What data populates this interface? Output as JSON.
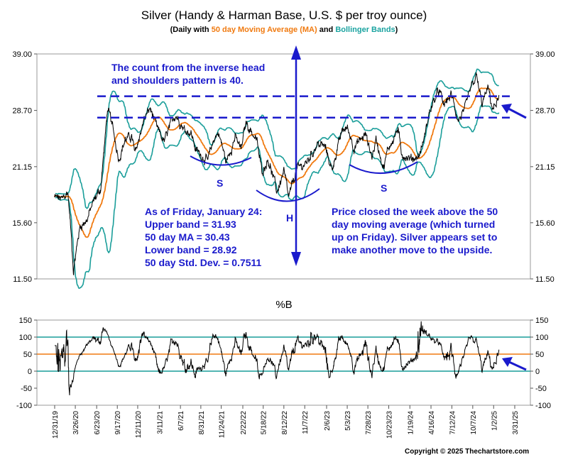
{
  "chart_data": [
    {
      "type": "line",
      "title": "Silver (Handy & Harman Base, U.S. $ per troy ounce)",
      "subtitle_parts": {
        "prefix": "(Daily with ",
        "ma_label": "50 day Moving Average (MA)",
        "and": " and ",
        "bb_label": "Bollinger Bands",
        "suffix": ")"
      },
      "log_scale": true,
      "ylim": [
        11.5,
        39.0
      ],
      "y_ticks": [
        "39.00",
        "28.70",
        "21.15",
        "15.60",
        "11.50"
      ],
      "y_tick_values": [
        39.0,
        28.7,
        21.15,
        15.6,
        11.5
      ],
      "grid": false,
      "series_colors": {
        "price": "#000000",
        "ma": "#f07a10",
        "bands": "#1a9e9a",
        "annotation": "#1a1acc"
      },
      "anchors": [
        [
          "2019-12-31",
          17.9
        ],
        [
          "2020-01-31",
          17.7
        ],
        [
          "2020-02-24",
          18.4
        ],
        [
          "2020-03-18",
          12.0
        ],
        [
          "2020-04-15",
          15.3
        ],
        [
          "2020-05-15",
          15.9
        ],
        [
          "2020-06-12",
          17.6
        ],
        [
          "2020-07-10",
          18.8
        ],
        [
          "2020-07-28",
          24.5
        ],
        [
          "2020-08-07",
          28.9
        ],
        [
          "2020-08-21",
          27.3
        ],
        [
          "2020-09-23",
          22.1
        ],
        [
          "2020-10-20",
          24.5
        ],
        [
          "2020-11-16",
          24.9
        ],
        [
          "2020-11-30",
          22.6
        ],
        [
          "2021-01-06",
          27.3
        ],
        [
          "2021-02-01",
          29.0
        ],
        [
          "2021-03-01",
          26.0
        ],
        [
          "2021-03-31",
          24.2
        ],
        [
          "2021-05-17",
          28.2
        ],
        [
          "2021-06-22",
          26.0
        ],
        [
          "2021-07-21",
          25.5
        ],
        [
          "2021-08-11",
          23.1
        ],
        [
          "2021-09-30",
          21.8
        ],
        [
          "2021-10-25",
          24.6
        ],
        [
          "2021-11-12",
          25.5
        ],
        [
          "2021-12-15",
          21.6
        ],
        [
          "2022-01-20",
          24.8
        ],
        [
          "2022-02-15",
          23.2
        ],
        [
          "2022-03-07",
          26.9
        ],
        [
          "2022-04-20",
          24.4
        ],
        [
          "2022-05-13",
          20.5
        ],
        [
          "2022-06-07",
          22.1
        ],
        [
          "2022-07-14",
          18.4
        ],
        [
          "2022-08-12",
          20.6
        ],
        [
          "2022-09-01",
          17.8
        ],
        [
          "2022-10-04",
          20.8
        ],
        [
          "2022-11-15",
          21.6
        ],
        [
          "2022-12-30",
          24.0
        ],
        [
          "2023-01-31",
          23.5
        ],
        [
          "2023-02-28",
          20.8
        ],
        [
          "2023-04-14",
          25.8
        ],
        [
          "2023-05-04",
          26.1
        ],
        [
          "2023-06-01",
          23.5
        ],
        [
          "2023-07-18",
          25.2
        ],
        [
          "2023-08-15",
          22.3
        ],
        [
          "2023-08-31",
          24.5
        ],
        [
          "2023-10-02",
          21.0
        ],
        [
          "2023-10-20",
          23.3
        ],
        [
          "2023-12-01",
          25.9
        ],
        [
          "2023-12-13",
          22.8
        ],
        [
          "2024-01-22",
          22.0
        ],
        [
          "2024-02-28",
          22.5
        ],
        [
          "2024-03-21",
          25.0
        ],
        [
          "2024-04-12",
          28.8
        ],
        [
          "2024-05-20",
          32.0
        ],
        [
          "2024-06-07",
          29.5
        ],
        [
          "2024-07-10",
          31.2
        ],
        [
          "2024-08-07",
          27.2
        ],
        [
          "2024-09-03",
          28.5
        ],
        [
          "2024-09-27",
          32.0
        ],
        [
          "2024-10-22",
          34.5
        ],
        [
          "2024-11-14",
          29.7
        ],
        [
          "2024-12-10",
          32.3
        ],
        [
          "2024-12-30",
          28.8
        ],
        [
          "2025-01-24",
          30.6
        ]
      ],
      "annotations": {
        "count_text": [
          "The count from the inverse head",
          "and shoulders pattern is 40."
        ],
        "stats_text": [
          "As of Friday, January 24:",
          "Upper band = 31.93",
          "50 day MA = 30.43",
          "Lower band = 28.92",
          "50 day Std. Dev. = 0.7511"
        ],
        "price_text": [
          "Price closed the week above the 50",
          "day moving average (which turned",
          "up  on Friday).  Silver appears set  to",
          "make another move to the upside."
        ],
        "pattern_labels": [
          "S",
          "H",
          "S"
        ],
        "dashed_levels": [
          31.0,
          27.6
        ]
      }
    },
    {
      "type": "line",
      "title": "%B",
      "ylim": [
        -100,
        150
      ],
      "y_ticks": [
        "150",
        "100",
        "50",
        "0",
        "-50",
        "-100"
      ],
      "y_tick_values": [
        150,
        100,
        50,
        0,
        -50,
        -100
      ],
      "reference_lines": [
        100,
        50,
        0
      ]
    }
  ],
  "x_ticks": [
    "12/31/19",
    "3/26/20",
    "6/23/20",
    "9/17/20",
    "12/11/20",
    "3/11/21",
    "6/7/21",
    "8/31/21",
    "11/24/21",
    "2/22/22",
    "5/18/22",
    "8/12/22",
    "11/7/22",
    "2/6/23",
    "5/3/23",
    "7/28/23",
    "10/23/23",
    "1/19/24",
    "4/16/24",
    "7/12/24",
    "10/7/24",
    "1/2/25",
    "3/31/25"
  ],
  "copyright": "Copyright © 2025 Thechartstore.com"
}
